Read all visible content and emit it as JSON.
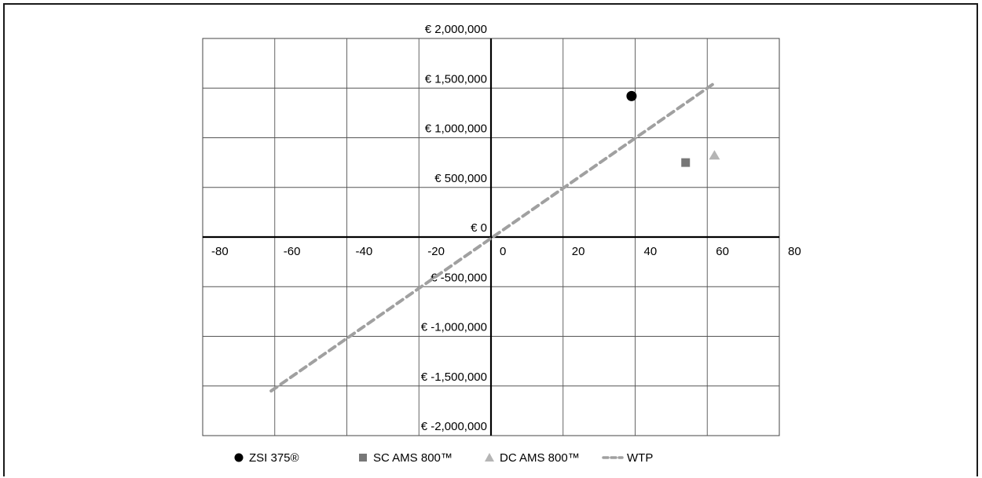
{
  "chart_data": {
    "type": "scatter",
    "title": "",
    "xlabel": "",
    "ylabel": "",
    "xlim": [
      -80,
      80
    ],
    "ylim": [
      -2000000,
      2000000
    ],
    "x_ticks": [
      -80,
      -60,
      -40,
      -20,
      0,
      20,
      40,
      60,
      80
    ],
    "x_tick_labels": [
      "-80",
      "-60",
      "-40",
      "-20",
      "0",
      "20",
      "40",
      "60",
      "80"
    ],
    "y_ticks": [
      2000000,
      1500000,
      1000000,
      500000,
      0,
      -500000,
      -1000000,
      -1500000,
      -2000000
    ],
    "y_tick_labels": [
      "€ 2,000,000",
      "€ 1,500,000",
      "€ 1,000,000",
      "€ 500,000",
      "€ 0",
      "€ -500,000",
      "€ -1,000,000",
      "€ -1,500,000",
      "€ -2,000,000"
    ],
    "grid": true,
    "legend_position": "bottom",
    "series": [
      {
        "name": "ZSI 375®",
        "marker": "circle",
        "color": "#000000",
        "points": [
          {
            "x": 39,
            "y": 1420000
          }
        ]
      },
      {
        "name": "SC AMS 800™",
        "marker": "square",
        "color": "#777777",
        "points": [
          {
            "x": 54,
            "y": 750000
          }
        ]
      },
      {
        "name": "DC AMS 800™",
        "marker": "triangle",
        "color": "#b5b5b5",
        "points": [
          {
            "x": 62,
            "y": 820000
          }
        ]
      },
      {
        "name": "WTP",
        "marker": "dashed-line",
        "color": "#a0a0a0",
        "points": [
          {
            "x": -61,
            "y": -1550000
          },
          {
            "x": 62,
            "y": 1550000
          }
        ]
      }
    ]
  }
}
